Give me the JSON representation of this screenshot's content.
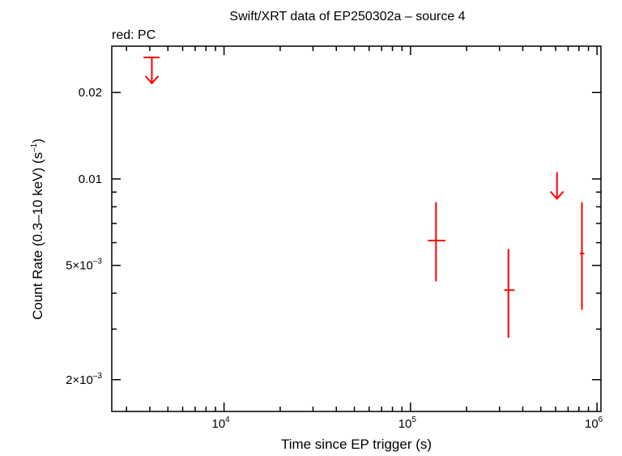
{
  "chart_data": {
    "type": "scatter",
    "title": "Swift/XRT data of EP250302a – source 4",
    "subtitle": "red: PC",
    "xlabel": "Time since EP trigger (s)",
    "ylabel": {
      "text": "Count Rate (0.3–10 keV) (s",
      "sup": "–1",
      "end": ")"
    },
    "x_scale": "log",
    "y_scale": "log",
    "xlim": [
      2500,
      1050000
    ],
    "ylim": [
      0.00155,
      0.029
    ],
    "x_ticks": [
      {
        "value": 10000,
        "base": "10",
        "exp": "4"
      },
      {
        "value": 100000,
        "base": "10",
        "exp": "5"
      },
      {
        "value": 1000000,
        "base": "10",
        "exp": "6"
      }
    ],
    "y_ticks": [
      {
        "value": 0.02,
        "mant": "0.02",
        "exp": ""
      },
      {
        "value": 0.01,
        "mant": "0.01",
        "exp": ""
      },
      {
        "value": 0.005,
        "mant": "5×10",
        "exp": "–3"
      },
      {
        "value": 0.002,
        "mant": "2×10",
        "exp": "–3"
      }
    ],
    "color": "#ff0000",
    "series": [
      {
        "points": [
          {
            "x": 137000,
            "xerr_lo": 124000,
            "xerr_hi": 154000,
            "y": 0.0061,
            "y_lo": 0.0044,
            "y_hi": 0.0083
          },
          {
            "x": 335000,
            "xerr_lo": 318000,
            "xerr_hi": 361000,
            "y": 0.0041,
            "y_lo": 0.0028,
            "y_hi": 0.0057
          },
          {
            "x": 830000,
            "xerr_lo": 808000,
            "xerr_hi": 855000,
            "y": 0.0055,
            "y_lo": 0.0035,
            "y_hi": 0.0083
          }
        ],
        "upper_limits": [
          {
            "x": 4100,
            "xerr_lo": 3700,
            "xerr_hi": 4500,
            "y": 0.0265
          },
          {
            "x": 610000,
            "xerr_lo": 605000,
            "xerr_hi": 615000,
            "y": 0.0105
          }
        ]
      }
    ]
  }
}
